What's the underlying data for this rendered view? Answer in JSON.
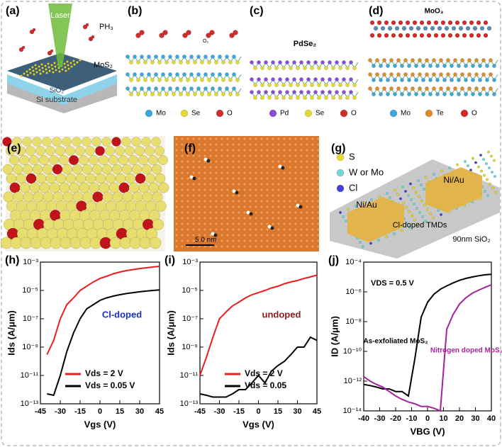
{
  "panels": {
    "a": {
      "label": "(a)",
      "laser": "Laser",
      "gas": "PH₃",
      "film": "MoS₂",
      "oxide": "SiO₂",
      "substrate": "Si substrate"
    },
    "b": {
      "label": "(b)",
      "gas": "O₂",
      "legend": [
        "Mo",
        "Se",
        "O"
      ]
    },
    "c": {
      "label": "(c)",
      "title": "PdSe₂",
      "legend": [
        "Pd",
        "Se",
        "O"
      ]
    },
    "d": {
      "label": "(d)",
      "title": "MoO₃",
      "legend": [
        "Mo",
        "Te",
        "O"
      ]
    },
    "e": {
      "label": "(e)"
    },
    "f": {
      "label": "(f)",
      "scale": "5.0 nm"
    },
    "g": {
      "label": "(g)",
      "legend": [
        "S",
        "W or Mo",
        "Cl"
      ],
      "contact_left": "Ni/Au",
      "contact_right": "Ni/Au",
      "channel": "Cl-doped TMDs",
      "substrate": "90nm SiO₂"
    }
  },
  "chart_data": [
    {
      "type": "line",
      "label": "(h)",
      "xlabel": "Vgs (V)",
      "ylabel": "Ids (A/μm)",
      "log": true,
      "legend": "lower right",
      "annotation": {
        "text": "Cl-doped",
        "color": "#1a2fbf"
      },
      "xlim": [
        -45,
        45
      ],
      "xticks": [
        -45,
        -30,
        -15,
        0,
        15,
        30,
        45
      ],
      "ylim": [
        1e-13,
        0.001
      ],
      "yticks": [
        {
          "value": 0.001,
          "label": "10⁻³"
        },
        {
          "value": 1e-05,
          "label": "10⁻⁵"
        },
        {
          "value": 1e-07,
          "label": "10⁻⁷"
        },
        {
          "value": 1e-09,
          "label": "10⁻⁹"
        },
        {
          "value": 1e-11,
          "label": "10⁻¹¹"
        },
        {
          "value": 1e-13,
          "label": "10⁻¹³"
        }
      ],
      "x": [
        -45,
        -40,
        -35,
        -30,
        -25,
        -20,
        -15,
        -10,
        -5,
        0,
        5,
        10,
        15,
        20,
        25,
        30,
        35,
        40,
        45
      ],
      "series": [
        {
          "name": "Vds = 2 V",
          "color": "#ee1c1c",
          "values": [
            null,
            3e-10,
            3e-09,
            1e-07,
            1e-06,
            3e-06,
            1e-05,
            2e-05,
            4e-05,
            7e-05,
            0.0001,
            0.00015,
            0.0002,
            0.00025,
            0.0003,
            0.00035,
            0.0004,
            0.00045,
            0.0005
          ]
        },
        {
          "name": "Vds = 0.05 V",
          "color": "#000000",
          "values": [
            null,
            5e-13,
            4e-13,
            1e-11,
            5e-10,
            1e-08,
            1e-07,
            5e-07,
            1e-06,
            2e-06,
            3e-06,
            4e-06,
            5e-06,
            6e-06,
            7e-06,
            8e-06,
            9e-06,
            1e-05,
            1.1e-05
          ]
        }
      ]
    },
    {
      "type": "line",
      "label": "(i)",
      "xlabel": "Vgs (V)",
      "ylabel": "Ids (A/μm)",
      "log": true,
      "legend": "lower right",
      "annotation": {
        "text": "undoped",
        "color": "#8b1a1a"
      },
      "xlim": [
        -45,
        45
      ],
      "xticks": [
        -45,
        -30,
        -15,
        0,
        15,
        30,
        45
      ],
      "ylim": [
        1e-13,
        0.001
      ],
      "yticks": [
        {
          "value": 0.001,
          "label": "10⁻³"
        },
        {
          "value": 1e-05,
          "label": "10⁻⁵"
        },
        {
          "value": 1e-07,
          "label": "10⁻⁷"
        },
        {
          "value": 1e-09,
          "label": "10⁻⁹"
        },
        {
          "value": 1e-11,
          "label": "10⁻¹¹"
        },
        {
          "value": 1e-13,
          "label": "10⁻¹³"
        }
      ],
      "x": [
        -45,
        -40,
        -35,
        -30,
        -25,
        -20,
        -15,
        -10,
        -5,
        0,
        5,
        10,
        15,
        20,
        25,
        30,
        35,
        40,
        45
      ],
      "series": [
        {
          "name": "Vds = 2 V",
          "color": "#ee1c1c",
          "values": [
            1e-11,
            2e-10,
            5e-09,
            1e-07,
            3e-07,
            8e-07,
            1.5e-06,
            3e-06,
            5e-06,
            7e-06,
            1e-05,
            1.5e-05,
            2e-05,
            3e-05,
            4e-05,
            5e-05,
            7e-05,
            9e-05,
            0.00012
          ]
        },
        {
          "name": "Vds = 0.05",
          "color": "#000000",
          "values": [
            5e-13,
            4e-13,
            3e-13,
            3e-13,
            3e-13,
            5e-13,
            1e-12,
            1e-12,
            3e-12,
            1e-11,
            3e-12,
            2e-11,
            5e-11,
            1e-10,
            3e-10,
            1e-09,
            1e-09,
            5e-09,
            3e-09
          ]
        }
      ]
    },
    {
      "type": "line",
      "label": "(j)",
      "xlabel": "VBG (V)",
      "ylabel": "ID (A/μm)",
      "log": true,
      "legend": "inline",
      "annotation": {
        "text": "VDS = 0.5 V",
        "color": "#000000"
      },
      "xlim": [
        -40,
        40
      ],
      "xticks": [
        -40,
        -30,
        -20,
        -10,
        0,
        10,
        20,
        30,
        40
      ],
      "ylim": [
        1e-14,
        0.0001
      ],
      "yticks": [
        {
          "value": 0.0001,
          "label": "10⁻⁴"
        },
        {
          "value": 1e-06,
          "label": "10⁻⁶"
        },
        {
          "value": 1e-08,
          "label": "10⁻⁸"
        },
        {
          "value": 1e-10,
          "label": "10⁻¹⁰"
        },
        {
          "value": 1e-12,
          "label": "10⁻¹²"
        },
        {
          "value": 1e-14,
          "label": "10⁻¹⁴"
        }
      ],
      "x": [
        -40,
        -36,
        -32,
        -28,
        -24,
        -20,
        -16,
        -12,
        -8,
        -4,
        0,
        4,
        8,
        12,
        16,
        20,
        24,
        28,
        32,
        36,
        40
      ],
      "series": [
        {
          "name": "As-exfoliated MoS₂",
          "color": "#000000",
          "values": [
            6e-13,
            5e-13,
            4e-13,
            3e-13,
            3e-13,
            2e-13,
            2e-13,
            1e-13,
            3e-11,
            2e-08,
            2e-07,
            7e-07,
            1.5e-06,
            2.5e-06,
            4e-06,
            6e-06,
            8e-06,
            1e-05,
            1.2e-05,
            1.4e-05,
            1.5e-05
          ]
        },
        {
          "name": "Nitrogen doped MoS₂",
          "color": "#a3239a",
          "values": [
            2e-12,
            1e-12,
            6e-13,
            4e-13,
            2e-13,
            1e-13,
            6e-14,
            4e-14,
            3e-14,
            2e-14,
            2e-14,
            1.5e-14,
            1e-14,
            3e-09,
            3e-08,
            1.5e-07,
            4e-07,
            8e-07,
            1.3e-06,
            2e-06,
            3e-06
          ]
        }
      ]
    }
  ]
}
